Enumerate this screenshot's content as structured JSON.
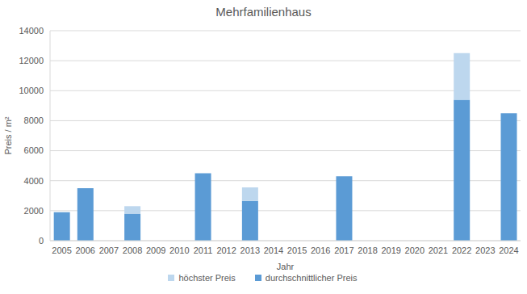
{
  "chart_data": {
    "type": "bar",
    "title": "Mehrfamilienhaus",
    "x_label": "Jahr",
    "y_label": "Preis / m²",
    "stacked": true,
    "grid": true,
    "legend": "bottom",
    "categories": [
      "2005",
      "2006",
      "2007",
      "2008",
      "2009",
      "2010",
      "2011",
      "2012",
      "2013",
      "2014",
      "2015",
      "2016",
      "2017",
      "2018",
      "2019",
      "2020",
      "2021",
      "2022",
      "2023",
      "2024"
    ],
    "series": [
      {
        "name": "durchschnittlicher Preis",
        "color": "#5b9bd5",
        "values": [
          1900,
          3500,
          null,
          1800,
          null,
          null,
          4500,
          null,
          2650,
          null,
          null,
          null,
          4300,
          null,
          null,
          null,
          null,
          9400,
          null,
          8500
        ]
      },
      {
        "name": "höchster Preis",
        "color": "#bdd7ee",
        "values": [
          null,
          null,
          null,
          500,
          null,
          null,
          null,
          null,
          900,
          null,
          null,
          null,
          null,
          null,
          null,
          null,
          null,
          3100,
          null,
          null
        ]
      }
    ],
    "ylim": [
      0,
      14000
    ],
    "yticks": [
      0,
      2000,
      4000,
      6000,
      8000,
      10000,
      12000,
      14000
    ]
  }
}
